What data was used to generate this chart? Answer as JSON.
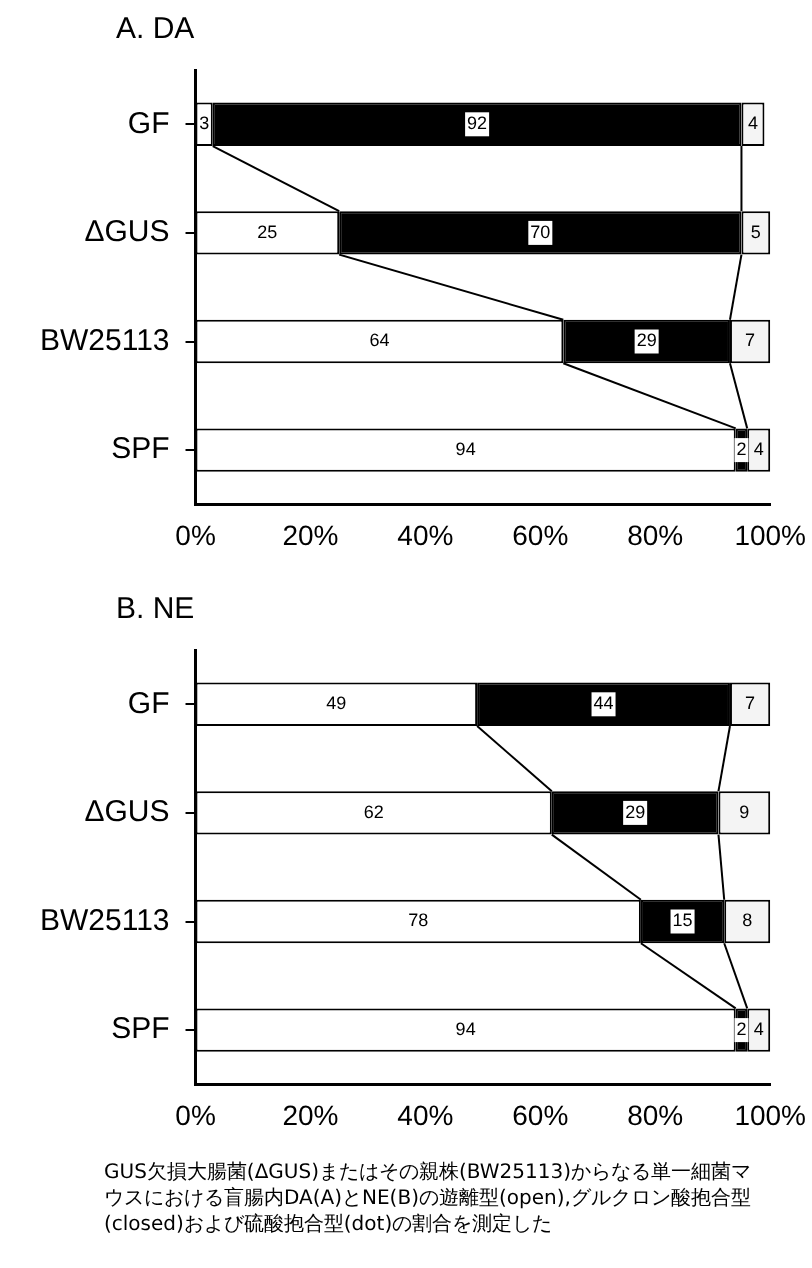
{
  "chart_data": [
    {
      "type": "bar",
      "title": "A. DA",
      "orientation": "horizontal",
      "stacked": true,
      "data_labels": true,
      "grid": false,
      "legend": false,
      "categories": [
        "GF",
        "ΔGUS",
        "BW25113",
        "SPF"
      ],
      "series": [
        {
          "color": "#ffffff",
          "values": [
            3,
            25,
            64,
            94
          ]
        },
        {
          "color": "#000000",
          "values": [
            92,
            70,
            29,
            2
          ]
        },
        {
          "color": "#f4f4f4",
          "values": [
            4,
            5,
            7,
            4
          ]
        }
      ],
      "xlim": [
        0,
        100
      ],
      "xticks": [
        {
          "value": 0,
          "label": "0%"
        },
        {
          "value": 20,
          "label": "20%"
        },
        {
          "value": 40,
          "label": "40%"
        },
        {
          "value": 60,
          "label": "60%"
        },
        {
          "value": 80,
          "label": "80%"
        },
        {
          "value": 100,
          "label": "100%"
        }
      ]
    },
    {
      "type": "bar",
      "title": "B. NE",
      "orientation": "horizontal",
      "stacked": true,
      "data_labels": true,
      "grid": false,
      "legend": false,
      "categories": [
        "GF",
        "ΔGUS",
        "BW25113",
        "SPF"
      ],
      "series": [
        {
          "color": "#ffffff",
          "values": [
            49,
            62,
            77.5,
            94
          ],
          "value_labels": [
            "49",
            "62",
            "78",
            "94"
          ]
        },
        {
          "color": "#000000",
          "values": [
            44,
            29,
            14.5,
            2
          ],
          "value_labels": [
            "44",
            "29",
            "15",
            "2"
          ]
        },
        {
          "color": "#f4f4f4",
          "values": [
            7,
            9,
            8,
            4
          ]
        }
      ],
      "xlim": [
        0,
        100
      ],
      "xticks": [
        {
          "value": 0,
          "label": "0%"
        },
        {
          "value": 20,
          "label": "20%"
        },
        {
          "value": 40,
          "label": "40%"
        },
        {
          "value": 60,
          "label": "60%"
        },
        {
          "value": 80,
          "label": "80%"
        },
        {
          "value": 100,
          "label": "100%"
        }
      ],
      "annotations": [
        "GUS欠損大腸菌(ΔGUS)またはその親株(BW25113)からなる単一細菌マウスにおける盲腸内DA(A)とNE(B)の遊離型(open),グルクロン酸抱合型(closed)および硫酸抱合型(dot)の割合を測定した"
      ]
    }
  ]
}
